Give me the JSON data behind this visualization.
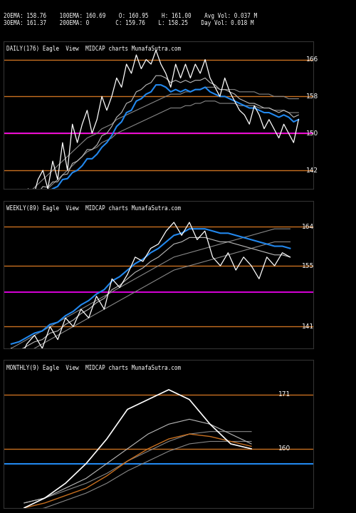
{
  "bg_color": "#000000",
  "text_color": "#ffffff",
  "title_text": "20EMA: 158.76    100EMA: 160.69    O: 160.95    H: 161.00    Avg Vol: 0.037 M\n30EMA: 161.37    200EMA: 0        C: 159.76    L: 158.25    Day Vol: 0.018 M",
  "panel1": {
    "label": "DAILY(176) Eagle  View  MIDCAP charts MunafaSutra.com",
    "ylim": [
      138,
      170
    ],
    "hlines": [
      {
        "y": 166,
        "color": "#c87020",
        "lw": 1.0,
        "label": "166"
      },
      {
        "y": 158,
        "color": "#c87020",
        "lw": 1.0,
        "label": "158"
      },
      {
        "y": 150,
        "color": "#c87020",
        "lw": 1.0,
        "label": "150"
      },
      {
        "y": 142,
        "color": "#c87020",
        "lw": 1.0,
        "label": "142"
      }
    ],
    "magenta_line": 150,
    "price_data": [
      134,
      132,
      136,
      130,
      138,
      136,
      140,
      142,
      138,
      144,
      140,
      148,
      142,
      152,
      148,
      152,
      155,
      150,
      153,
      158,
      155,
      158,
      162,
      160,
      165,
      163,
      167,
      164,
      166,
      165,
      168,
      165,
      163,
      160,
      165,
      162,
      165,
      162,
      165,
      163,
      166,
      162,
      160,
      158,
      162,
      159,
      157,
      155,
      154,
      152,
      156,
      154,
      151,
      153,
      151,
      149,
      152,
      150,
      148,
      153
    ],
    "ema20": [
      134,
      134.5,
      135.2,
      135.0,
      135.8,
      136.0,
      137.0,
      138.5,
      138.3,
      139.5,
      139.5,
      141.0,
      141.2,
      143.5,
      144.0,
      145.0,
      146.5,
      146.5,
      147.5,
      149.5,
      150.0,
      151.5,
      153.5,
      154.5,
      156.5,
      157.0,
      159.0,
      159.5,
      160.5,
      161.0,
      162.5,
      162.5,
      162.0,
      161.0,
      161.5,
      161.0,
      161.5,
      161.0,
      161.5,
      161.5,
      162.0,
      161.0,
      160.5,
      159.5,
      159.5,
      159.0,
      158.5,
      157.5,
      157.0,
      156.5,
      156.5,
      156.0,
      155.5,
      155.5,
      155.0,
      154.5,
      155.0,
      154.5,
      153.5,
      154.0
    ],
    "ema100": [
      133,
      133.5,
      134.2,
      134.0,
      134.8,
      135.0,
      136.0,
      137.0,
      137.3,
      138.0,
      138.5,
      140.0,
      140.2,
      141.5,
      142.0,
      143.0,
      144.5,
      144.5,
      145.5,
      147.0,
      148.0,
      149.5,
      151.5,
      152.5,
      154.5,
      155.0,
      157.0,
      157.5,
      158.5,
      159.0,
      160.5,
      160.5,
      160.0,
      159.0,
      159.5,
      159.0,
      159.5,
      159.0,
      159.5,
      159.5,
      160.0,
      159.0,
      158.5,
      158.0,
      158.0,
      157.5,
      157.0,
      156.5,
      156.0,
      155.5,
      155.5,
      155.0,
      154.5,
      154.5,
      154.0,
      153.5,
      154.0,
      153.5,
      152.5,
      153.0
    ],
    "trendline_up": [
      133,
      134,
      135,
      136,
      137,
      138,
      139,
      140,
      141,
      142,
      143,
      144,
      145,
      146,
      147,
      148,
      149,
      149.5,
      150,
      151,
      151.5,
      152,
      153,
      153.5,
      154,
      154.5,
      155,
      155.5,
      156,
      156.5,
      157,
      157.5,
      158,
      158.5,
      158.5,
      158.5,
      159,
      159,
      159.5,
      159.5,
      160,
      160,
      160,
      159.5,
      159.5,
      159.5,
      159.5,
      159,
      159,
      159,
      159,
      158.5,
      158.5,
      158.5,
      158,
      158,
      158,
      157.5,
      157.5,
      157.5
    ],
    "trendline_down": [
      130,
      131,
      132,
      133,
      134,
      135,
      136,
      137,
      138,
      139,
      140,
      141,
      142,
      143,
      144,
      145,
      146,
      146.5,
      147,
      148,
      148.5,
      149,
      150,
      150.5,
      151,
      151.5,
      152,
      152.5,
      153,
      153.5,
      154,
      154.5,
      155,
      155.5,
      155.5,
      155.5,
      156,
      156,
      156.5,
      156.5,
      157,
      157,
      157,
      156.5,
      156.5,
      156.5,
      156.5,
      156,
      156,
      156,
      156,
      155.5,
      155.5,
      155.5,
      155,
      155,
      155,
      154.5,
      154.5,
      154.5
    ]
  },
  "panel2": {
    "label": "WEEKLY(89) Eagle  View  MIDCAP charts MunafaSutra.com",
    "ylim": [
      136,
      170
    ],
    "hlines": [
      {
        "y": 164,
        "color": "#c87020",
        "lw": 1.0,
        "label": "164"
      },
      {
        "y": 155,
        "color": "#c87020",
        "lw": 1.0,
        "label": "155"
      },
      {
        "y": 141,
        "color": "#c87020",
        "lw": 1.0,
        "label": "141"
      }
    ],
    "magenta_line": 149,
    "price_data": [
      136,
      133,
      137,
      139,
      136,
      141,
      138,
      143,
      141,
      145,
      143,
      148,
      145,
      152,
      150,
      153,
      157,
      156,
      159,
      160,
      163,
      165,
      162,
      165,
      161,
      163,
      157,
      155,
      158,
      154,
      157,
      155,
      152,
      157,
      155,
      158,
      157
    ],
    "ema_fast": [
      137,
      137.5,
      138.5,
      139.5,
      140.0,
      141.5,
      142.0,
      143.5,
      144.5,
      146.0,
      147.0,
      148.5,
      149.5,
      151.5,
      152.5,
      154.0,
      155.5,
      156.5,
      158.0,
      159.0,
      160.5,
      162.0,
      162.5,
      163.5,
      163.5,
      163.5,
      163.0,
      162.5,
      162.5,
      162.0,
      161.5,
      161.0,
      160.5,
      160.0,
      159.5,
      159.5,
      159.0
    ],
    "ema_slow": [
      135,
      135.5,
      136.5,
      137.5,
      138.0,
      139.5,
      140.0,
      141.5,
      142.5,
      144.0,
      145.0,
      146.5,
      147.5,
      149.5,
      150.5,
      152.0,
      153.5,
      154.5,
      156.0,
      157.0,
      158.5,
      160.0,
      160.5,
      161.5,
      161.5,
      161.5,
      161.0,
      160.5,
      160.5,
      160.0,
      159.5,
      159.0,
      158.5,
      158.0,
      157.5,
      157.5,
      157.0
    ],
    "trendline_up": [
      136,
      137,
      138,
      139,
      140,
      141,
      142,
      143,
      144,
      145,
      146,
      147,
      148,
      149,
      150,
      151,
      152,
      153,
      154,
      155,
      156,
      157,
      157.5,
      158,
      158.5,
      159,
      159.5,
      160,
      160.5,
      161,
      161.5,
      162,
      162.5,
      163,
      163.5,
      163.5,
      163.5
    ],
    "trendline_down": [
      133,
      134,
      135,
      136,
      137,
      138,
      139,
      140,
      141,
      142,
      143,
      144,
      145,
      146,
      147,
      148,
      149,
      150,
      151,
      152,
      153,
      154,
      154.5,
      155,
      155.5,
      156,
      156.5,
      157,
      157.5,
      158,
      158.5,
      159,
      159.5,
      160,
      160.5,
      160.5,
      160.5
    ]
  },
  "panel3": {
    "label": "MONTHLY(9) Eagle  View  MIDCAP charts MunafaSutra.com",
    "ylim": [
      148,
      178
    ],
    "hlines": [
      {
        "y": 171,
        "color": "#c87020",
        "lw": 1.0,
        "label": "171"
      },
      {
        "y": 160,
        "color": "#c87020",
        "lw": 1.0,
        "label": "160"
      }
    ],
    "blue_hline": 157,
    "price_data": [
      148,
      150,
      153,
      157,
      162,
      168,
      170,
      172,
      170,
      165,
      161,
      160
    ],
    "ema_fast": [
      149,
      150,
      152,
      154,
      157,
      160,
      163,
      165,
      166,
      165,
      163,
      161
    ],
    "ema_slow": [
      148,
      149,
      150.5,
      152,
      154.5,
      157.5,
      160,
      162,
      163,
      162.5,
      161.5,
      160.5
    ],
    "trendline_up": [
      149,
      150,
      151.5,
      153,
      155,
      157.5,
      159.5,
      161.5,
      163,
      163.5,
      163.5,
      163.5
    ],
    "trendline_down": [
      147,
      148,
      149.5,
      151,
      153,
      155.5,
      157.5,
      159.5,
      161,
      161.5,
      161.5,
      161.5
    ]
  }
}
